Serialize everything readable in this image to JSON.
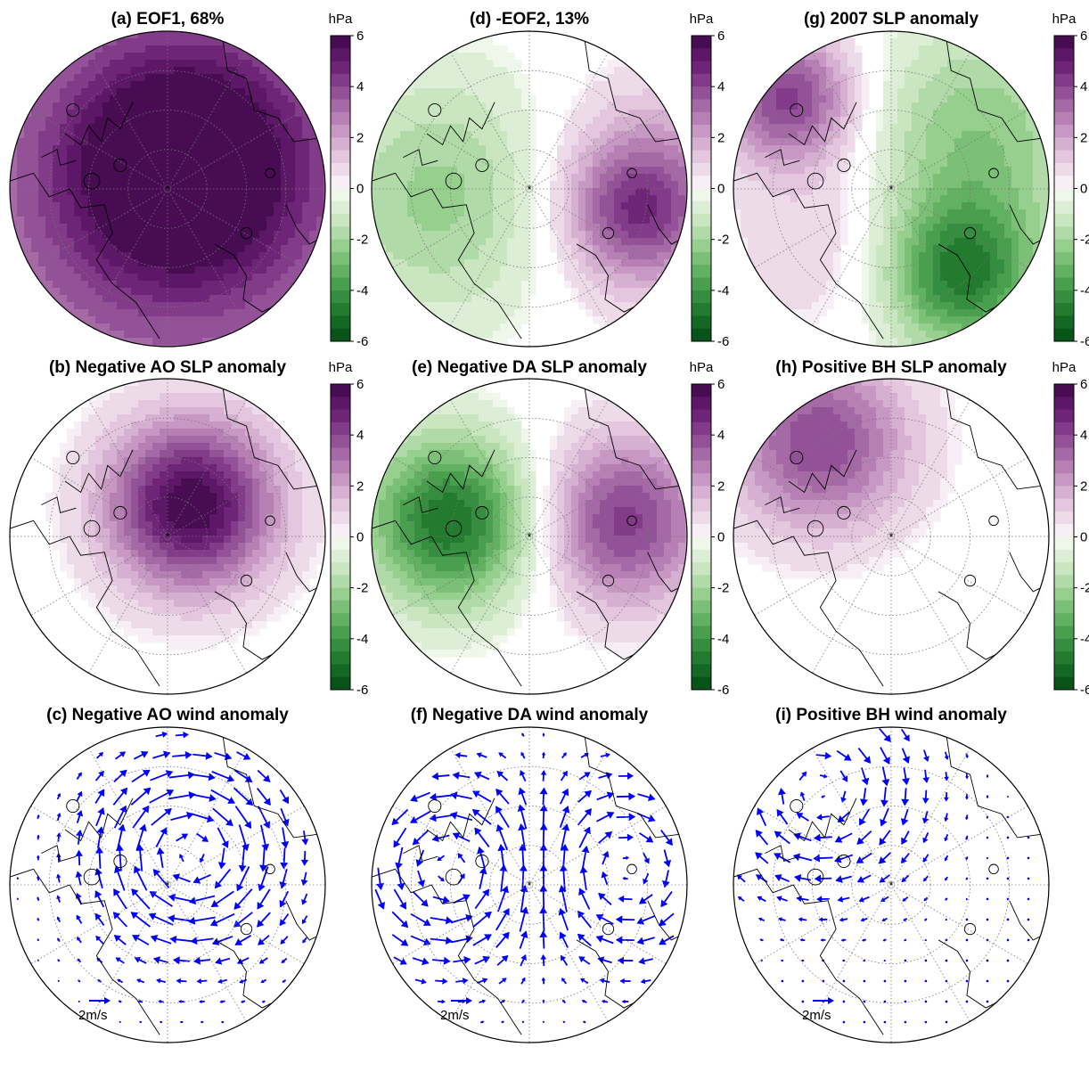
{
  "panels": [
    {
      "id": "a",
      "title": "(a) EOF1, 68%",
      "type": "slp",
      "field": "eof1"
    },
    {
      "id": "d",
      "title": "(d) -EOF2, 13%",
      "type": "slp",
      "field": "eof2"
    },
    {
      "id": "g",
      "title": "(g) 2007 SLP anomaly",
      "type": "slp",
      "field": "y2007"
    },
    {
      "id": "b",
      "title": "(b) Negative AO SLP anomaly",
      "type": "slp",
      "field": "ao"
    },
    {
      "id": "e",
      "title": "(e) Negative DA SLP anomaly",
      "type": "slp",
      "field": "da"
    },
    {
      "id": "h",
      "title": "(h) Positive BH SLP anomaly",
      "type": "slp",
      "field": "bh"
    },
    {
      "id": "c",
      "title": "(c) Negative AO wind anomaly",
      "type": "wind",
      "field": "ao"
    },
    {
      "id": "f",
      "title": "(f) Negative DA wind anomaly",
      "type": "wind",
      "field": "da"
    },
    {
      "id": "i",
      "title": "(i) Positive BH wind anomaly",
      "type": "wind",
      "field": "bh"
    }
  ],
  "colorbar": {
    "unit": "hPa",
    "ticks": [
      "6",
      "4",
      "2",
      "0",
      "-2",
      "-4",
      "-6"
    ],
    "range": [
      -6,
      6
    ],
    "colors_positive": [
      "#f7eff5",
      "#eedbea",
      "#e4c7de",
      "#d6b0d1",
      "#c798c3",
      "#b680b4",
      "#a569a6",
      "#935197",
      "#813b88",
      "#6f2577",
      "#5c1766",
      "#470c52"
    ],
    "colors_negative": [
      "#eef7ea",
      "#dcefd6",
      "#c9e6c0",
      "#b0dba8",
      "#96cf8e",
      "#7cc077",
      "#62b062",
      "#4a9f4f",
      "#358d3f",
      "#237b30",
      "#146823",
      "#075318"
    ]
  },
  "wind_reference": {
    "label": "2m/s",
    "color": "#0000ff"
  },
  "coastline_color": "#000000",
  "grid_color": "#777777"
}
